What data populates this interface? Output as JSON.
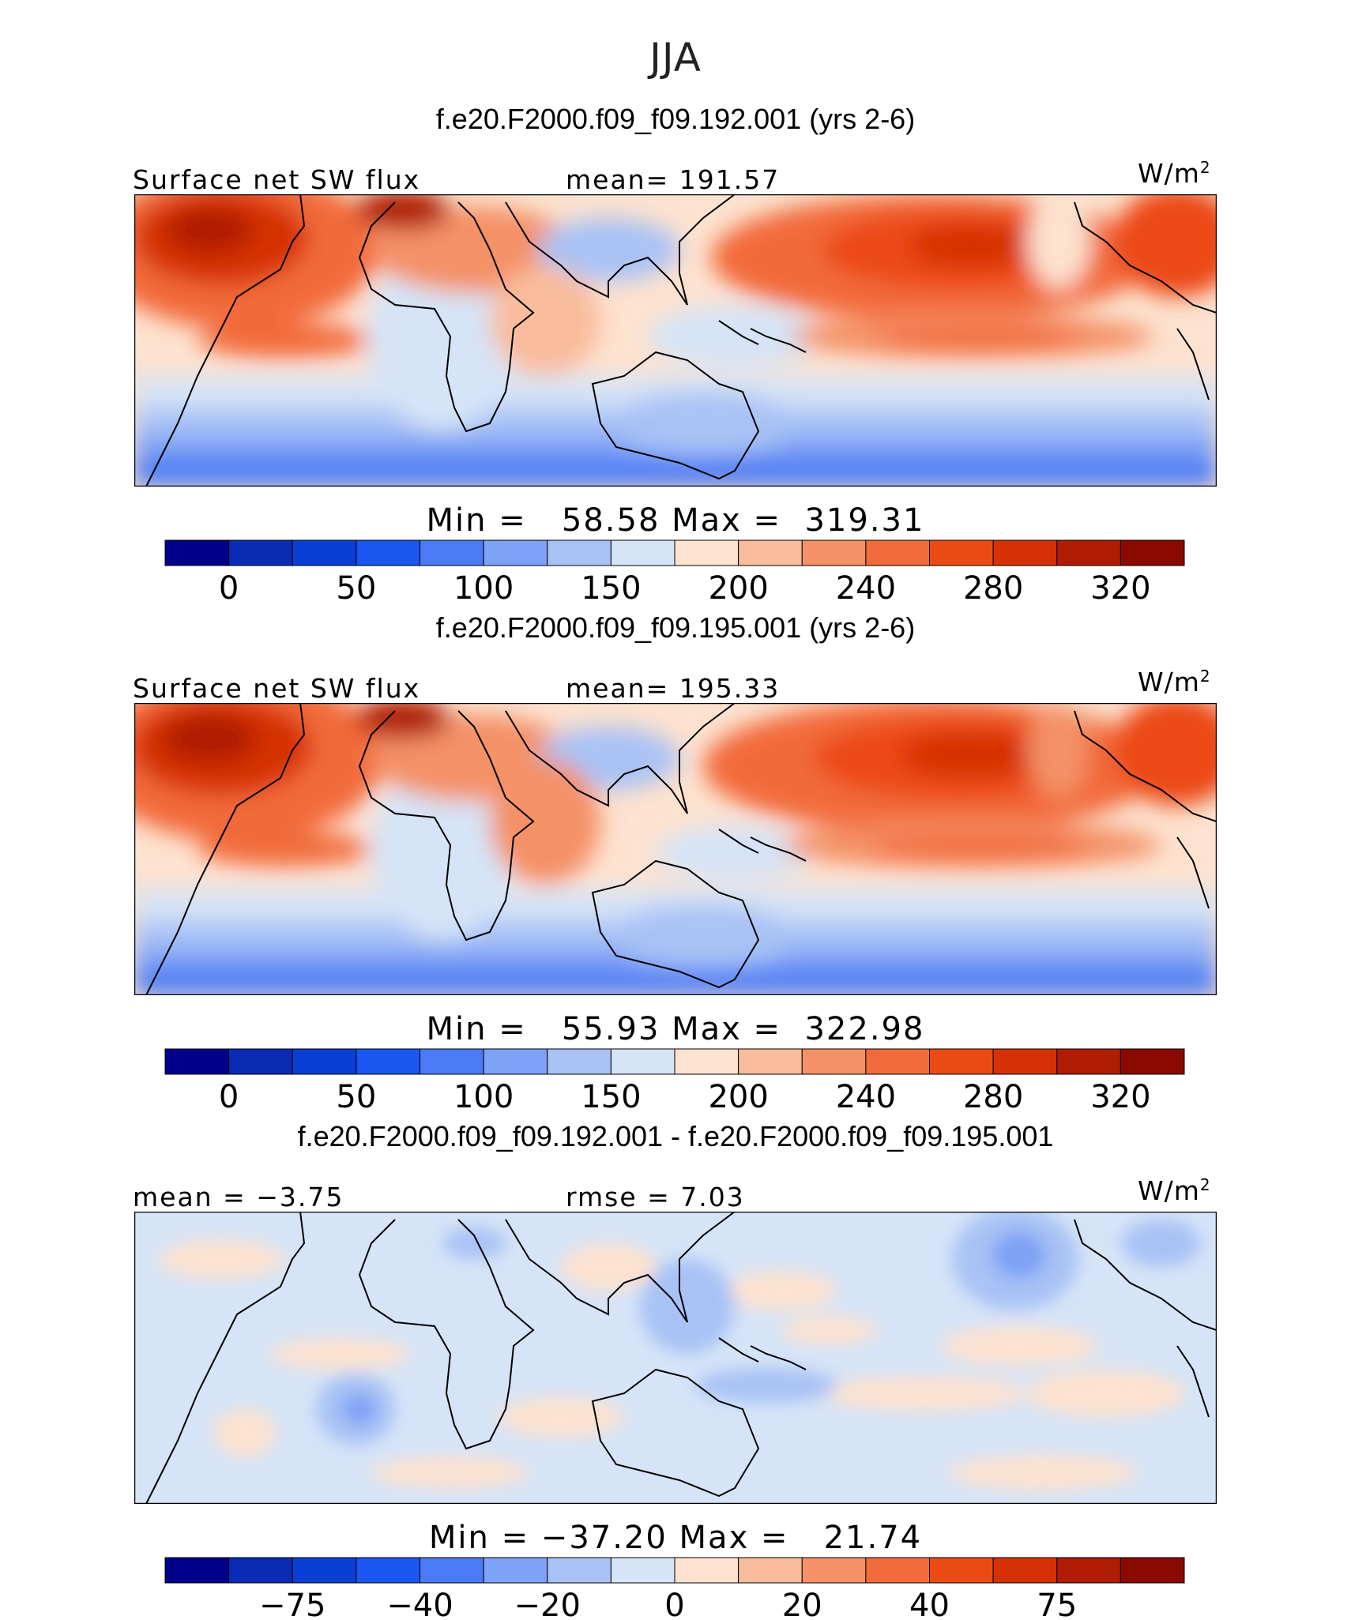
{
  "title": "JJA",
  "units": {
    "base": "W/m",
    "exp": "2"
  },
  "panels": [
    {
      "case_title": "f.e20.F2000.f09_f09.192.001 (yrs 2-6)",
      "left_label": "Surface net SW flux",
      "stat_label": "mean= 191.57",
      "minmax": "Min =   58.58 Max =  319.31"
    },
    {
      "case_title": "f.e20.F2000.f09_f09.195.001 (yrs 2-6)",
      "left_label": "Surface net SW flux",
      "stat_label": "mean= 195.33",
      "minmax": "Min =   55.93 Max =  322.98"
    },
    {
      "case_title": "f.e20.F2000.f09_f09.192.001 - f.e20.F2000.f09_f09.195.001",
      "left_label": "mean =  −3.75",
      "stat_label": "rmse =    7.03",
      "minmax": "Min = −37.20 Max =   21.74"
    }
  ],
  "colorbars": [
    {
      "colors": [
        "#00008a",
        "#0a2cb4",
        "#0a3fd6",
        "#1a56f0",
        "#4a7af5",
        "#7ea2f5",
        "#a9c2f5",
        "#d5e4f7",
        "#fde2cf",
        "#f9bc9c",
        "#f49166",
        "#f26b3a",
        "#ec4a14",
        "#d63006",
        "#b01c04",
        "#8a0a00"
      ],
      "tick_labels": [
        "0",
        "50",
        "100",
        "150",
        "200",
        "240",
        "280",
        "320"
      ],
      "tick_positions": [
        1,
        3,
        5,
        7,
        9,
        11,
        13,
        15
      ]
    },
    {
      "colors": [
        "#00008a",
        "#0a2cb4",
        "#0a3fd6",
        "#1a56f0",
        "#4a7af5",
        "#7ea2f5",
        "#a9c2f5",
        "#d5e4f7",
        "#fde2cf",
        "#f9bc9c",
        "#f49166",
        "#f26b3a",
        "#ec4a14",
        "#d63006",
        "#b01c04",
        "#8a0a00"
      ],
      "tick_labels": [
        "0",
        "50",
        "100",
        "150",
        "200",
        "240",
        "280",
        "320"
      ],
      "tick_positions": [
        1,
        3,
        5,
        7,
        9,
        11,
        13,
        15
      ]
    },
    {
      "colors": [
        "#00008a",
        "#0a2cb4",
        "#0a3fd6",
        "#1a56f0",
        "#4a7af5",
        "#7ea2f5",
        "#a9c2f5",
        "#d5e4f7",
        "#fde2cf",
        "#f9bc9c",
        "#f49166",
        "#f26b3a",
        "#ec4a14",
        "#d63006",
        "#b01c04",
        "#8a0a00"
      ],
      "tick_labels": [
        "−75",
        "−40",
        "−20",
        "0",
        "20",
        "40",
        "75"
      ],
      "tick_positions": [
        2,
        4,
        6,
        8,
        10,
        12,
        14
      ]
    }
  ],
  "chart_data": {
    "type": "heatmap",
    "title": "JJA",
    "panels": [
      {
        "name": "f.e20.F2000.f09_f09.192.001 (yrs 2-6)",
        "variable": "Surface net SW flux",
        "units": "W/m2",
        "mean": 191.57,
        "min": 58.58,
        "max": 319.31
      },
      {
        "name": "f.e20.F2000.f09_f09.195.001 (yrs 2-6)",
        "variable": "Surface net SW flux",
        "units": "W/m2",
        "mean": 195.33,
        "min": 55.93,
        "max": 322.98
      },
      {
        "name": "f.e20.F2000.f09_f09.192.001 - f.e20.F2000.f09_f09.195.001",
        "units": "W/m2",
        "mean": -3.75,
        "rmse": 7.03,
        "min": -37.2,
        "max": 21.74
      }
    ]
  }
}
